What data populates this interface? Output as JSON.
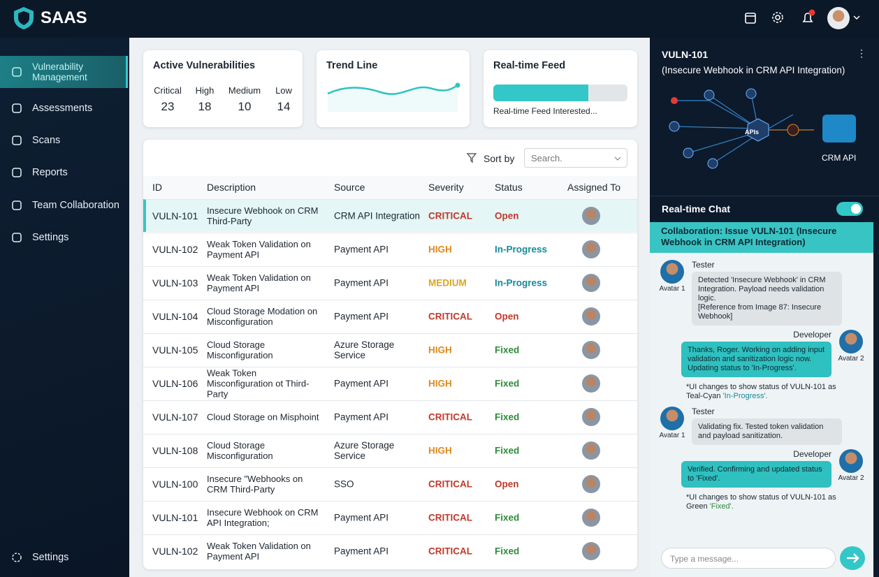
{
  "header": {
    "brand": "SAAS"
  },
  "sidebar": {
    "items": [
      "Vulnerability Management",
      "Assessments",
      "Scans",
      "Reports",
      "Team Collaboration",
      "Settings"
    ],
    "footer": "Settings"
  },
  "cards": {
    "active": {
      "title": "Active Vulnerabilities",
      "stats": [
        {
          "label": "Critical",
          "value": 23
        },
        {
          "label": "High",
          "value": 18
        },
        {
          "label": "Medium",
          "value": 10
        },
        {
          "label": "Low",
          "value": 14
        }
      ]
    },
    "trend": {
      "title": "Trend Line"
    },
    "feed": {
      "title": "Real-time Feed",
      "text": "Real-time Feed Interested..."
    }
  },
  "table": {
    "sort_label": "Sort by",
    "search_placeholder": "Search.",
    "columns": [
      "ID",
      "Description",
      "Source",
      "Severity",
      "Status",
      "Assigned To"
    ],
    "severity_colors": {
      "CRITICAL": "#c0392b",
      "HIGH": "#e08a1e",
      "MEDIUM": "#d9a520"
    },
    "status_colors": {
      "Open": "#c0392b",
      "In-Progress": "#178a9a",
      "Fixed": "#2e8b3a"
    },
    "rows": [
      {
        "id": "VULN-101",
        "description": "Insecure Webhook on CRM Third-Party",
        "source": "CRM API Integration",
        "severity": "CRITICAL",
        "status": "Open"
      },
      {
        "id": "VULN-102",
        "description": "Weak Token Validation on Payment API",
        "source": "Payment API",
        "severity": "HIGH",
        "status": "In-Progress"
      },
      {
        "id": "VULN-103",
        "description": "Weak Token Validation on Payment API",
        "source": "Payment API",
        "severity": "MEDIUM",
        "status": "In-Progress"
      },
      {
        "id": "VULN-104",
        "description": "Cloud Storage Modation on Misconfiguration",
        "source": "Payment API",
        "severity": "CRITICAL",
        "status": "Open"
      },
      {
        "id": "VULN-105",
        "description": "Cloud Storage Misconfiguration",
        "source": "Azure Storage Service",
        "severity": "HIGH",
        "status": "Fixed"
      },
      {
        "id": "VULN-106",
        "description": "Weak Token Misconfiguration ot Third-Party",
        "source": "Payment API",
        "severity": "HIGH",
        "status": "Fixed"
      },
      {
        "id": "VULN-107",
        "description": "Cloud Storage on Misphoint",
        "source": "Payment API",
        "severity": "CRITICAL",
        "status": "Fixed"
      },
      {
        "id": "VULN-108",
        "description": "Cloud Storage Misconfiguration",
        "source": "Azure Storage Service",
        "severity": "HIGH",
        "status": "Fixed"
      },
      {
        "id": "VULN-100",
        "description": "Insecure \"Webhooks on CRM Third-Party",
        "source": "SSO",
        "severity": "CRITICAL",
        "status": "Open"
      },
      {
        "id": "VULN-101",
        "description": "Insecure Webhook on CRM API Integration;",
        "source": "Payment API",
        "severity": "CRITICAL",
        "status": "Fixed"
      },
      {
        "id": "VULN-102",
        "description": "Weak Token Validation on Payment API",
        "source": "Payment API",
        "severity": "CRITICAL",
        "status": "Fixed"
      }
    ]
  },
  "detail": {
    "title": "VULN-101",
    "subtitle": "(Insecure Webhook in CRM API Integration)",
    "hub_label": "APIs",
    "target_label": "CRM API"
  },
  "chat": {
    "title": "Real-time Chat",
    "banner": "Collaboration: Issue VULN-101 (Insecure Webhook in CRM API Integration)",
    "messages": [
      {
        "sender": "Tester",
        "avatar": "Avatar 1",
        "text": "Detected 'Insecure Webhook' in CRM Integration. Payload needs validation logic.\n[Reference from Image 87: Insecure Webhook]"
      },
      {
        "sender": "Developer",
        "avatar": "Avatar 2",
        "text": "Thanks, Roger. Working on adding input validation and sanitization logic now. Updating status to 'In-Progress'.",
        "note": "*UI changes to show status of VULN-101 as Teal-Cyan ",
        "note_highlight": "'In-Progress'."
      },
      {
        "sender": "Tester",
        "avatar": "Avatar 1",
        "text": "Validating fix. Tested token validation and payload sanitization."
      },
      {
        "sender": "Developer",
        "avatar": "Avatar 2",
        "text": "Verified. Confirming and updated status to 'Fixed'.",
        "note": "*UI changes to show status of VULN-101 as Green ",
        "note_highlight": "'Fixed'."
      }
    ],
    "input_placeholder": "Type a message..."
  }
}
